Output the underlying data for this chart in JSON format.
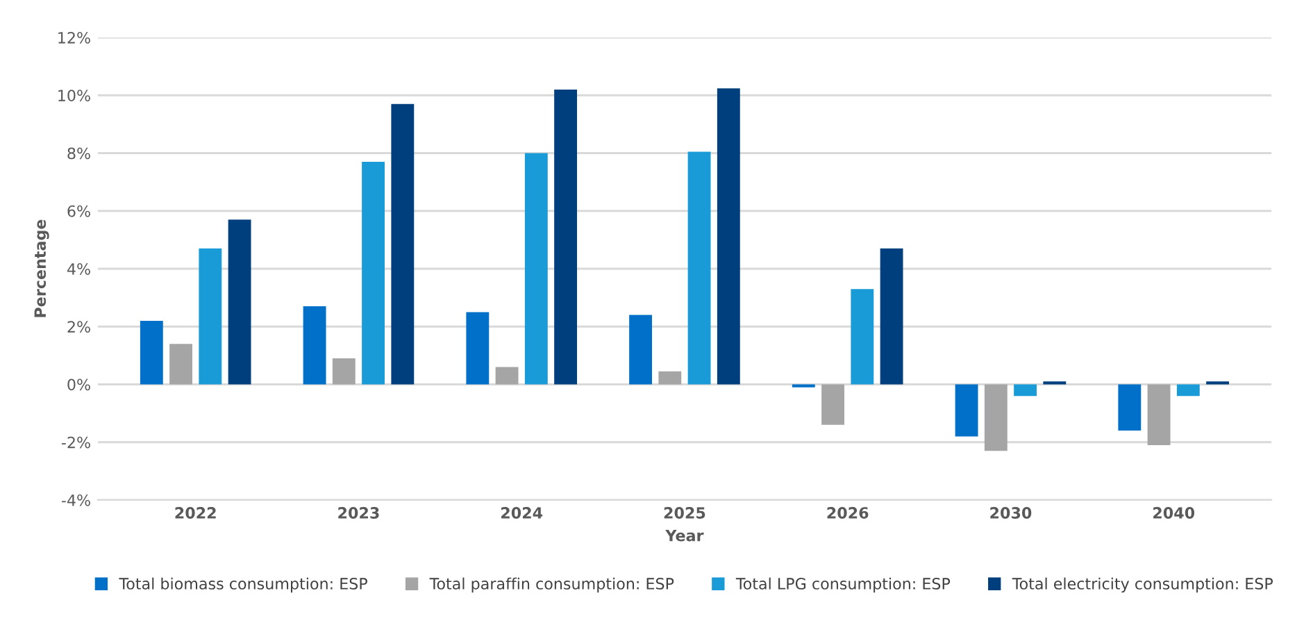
{
  "chart_data": {
    "type": "bar",
    "xlabel": "Year",
    "ylabel": "Percentage",
    "categories": [
      "2022",
      "2023",
      "2024",
      "2025",
      "2026",
      "2030",
      "2040"
    ],
    "series": [
      {
        "name": "Total biomass consumption: ESP",
        "color": "#0070c8",
        "values": [
          2.2,
          2.7,
          2.5,
          2.4,
          -0.1,
          -1.8,
          -1.6
        ]
      },
      {
        "name": "Total paraffin consumption: ESP",
        "color": "#a5a5a5",
        "values": [
          1.4,
          0.9,
          0.6,
          0.45,
          -1.4,
          -2.3,
          -2.1
        ]
      },
      {
        "name": "Total LPG consumption: ESP",
        "color": "#189bd7",
        "values": [
          4.7,
          7.7,
          8.0,
          8.05,
          3.3,
          -0.4,
          -0.4
        ]
      },
      {
        "name": "Total electricity consumption: ESP",
        "color": "#003f7d",
        "values": [
          5.7,
          9.7,
          10.2,
          10.24,
          4.7,
          0.1,
          0.1
        ]
      }
    ],
    "ylim": [
      -4,
      12
    ],
    "yticks": [
      {
        "value": -4,
        "label": "-4%"
      },
      {
        "value": -2,
        "label": "-2%"
      },
      {
        "value": 0,
        "label": "0%"
      },
      {
        "value": 2,
        "label": "2%"
      },
      {
        "value": 4,
        "label": "4%"
      },
      {
        "value": 6,
        "label": "6%"
      },
      {
        "value": 8,
        "label": "8%"
      },
      {
        "value": 10,
        "label": "10%"
      },
      {
        "value": 12,
        "label": "12%"
      }
    ],
    "grid": "y",
    "legend": "bottom"
  }
}
